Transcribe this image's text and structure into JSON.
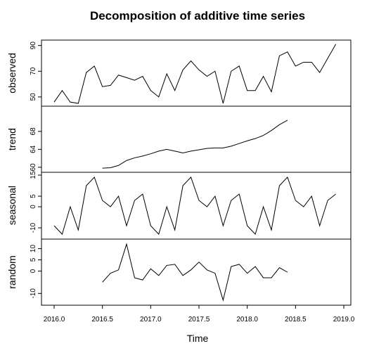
{
  "chart_data": {
    "type": "line",
    "title": "Decomposition of additive time series",
    "xlabel": "Time",
    "xlim": [
      2016.0,
      2019.0
    ],
    "xticks": [
      2016.0,
      2016.5,
      2017.0,
      2017.5,
      2018.0,
      2018.5,
      2019.0
    ],
    "xtick_labels": [
      "2016.0",
      "2016.5",
      "2017.0",
      "2017.5",
      "2018.0",
      "2018.5",
      "2019.0"
    ],
    "time_start": 2016.0,
    "frequency": 12,
    "panels": [
      {
        "name": "observed",
        "ylabel": "observed",
        "ylim": [
          45,
          92
        ],
        "yticks": [
          50,
          70,
          90
        ],
        "values": [
          46,
          55,
          46,
          45,
          69,
          74,
          58,
          59,
          67,
          65,
          63,
          66,
          55,
          50,
          68,
          55,
          71,
          78,
          71,
          66,
          70,
          45,
          70,
          74,
          55,
          55,
          66,
          54,
          82,
          85,
          74,
          77,
          77,
          69,
          80,
          91
        ]
      },
      {
        "name": "trend",
        "ylabel": "trend",
        "ylim": [
          59.5,
          73
        ],
        "yticks": [
          60,
          64,
          68
        ],
        "values": [
          null,
          null,
          null,
          null,
          null,
          null,
          59.8,
          59.9,
          60.4,
          61.5,
          62.1,
          62.5,
          63.0,
          63.6,
          64.0,
          63.6,
          63.2,
          63.6,
          63.9,
          64.2,
          64.3,
          64.3,
          64.7,
          65.3,
          65.9,
          66.4,
          67.1,
          68.2,
          69.5,
          70.5,
          null,
          null,
          null,
          null,
          null,
          null
        ]
      },
      {
        "name": "seasonal",
        "ylabel": "seasonal",
        "ylim": [
          -14,
          15
        ],
        "yticks": [
          -10,
          0,
          5,
          15
        ],
        "values": [
          -9,
          -13,
          0,
          -11,
          10,
          14,
          3,
          0,
          5,
          -9,
          3,
          6,
          -9,
          -13,
          0,
          -11,
          10,
          14,
          3,
          0,
          5,
          -9,
          3,
          6,
          -9,
          -13,
          0,
          -11,
          10,
          14,
          3,
          0,
          5,
          -9,
          3,
          6
        ]
      },
      {
        "name": "random",
        "ylabel": "random",
        "ylim": [
          -14,
          13
        ],
        "yticks": [
          -10,
          0,
          5,
          10
        ],
        "values": [
          null,
          null,
          null,
          null,
          null,
          null,
          -5,
          -1,
          0.5,
          12,
          -3,
          -4,
          1,
          -2,
          2.5,
          3,
          -2,
          0.5,
          4,
          0.5,
          -1,
          -13,
          2,
          3,
          -1,
          2,
          -3,
          -3,
          1.5,
          -0.5,
          null,
          null,
          null,
          null,
          null,
          null
        ]
      }
    ]
  }
}
